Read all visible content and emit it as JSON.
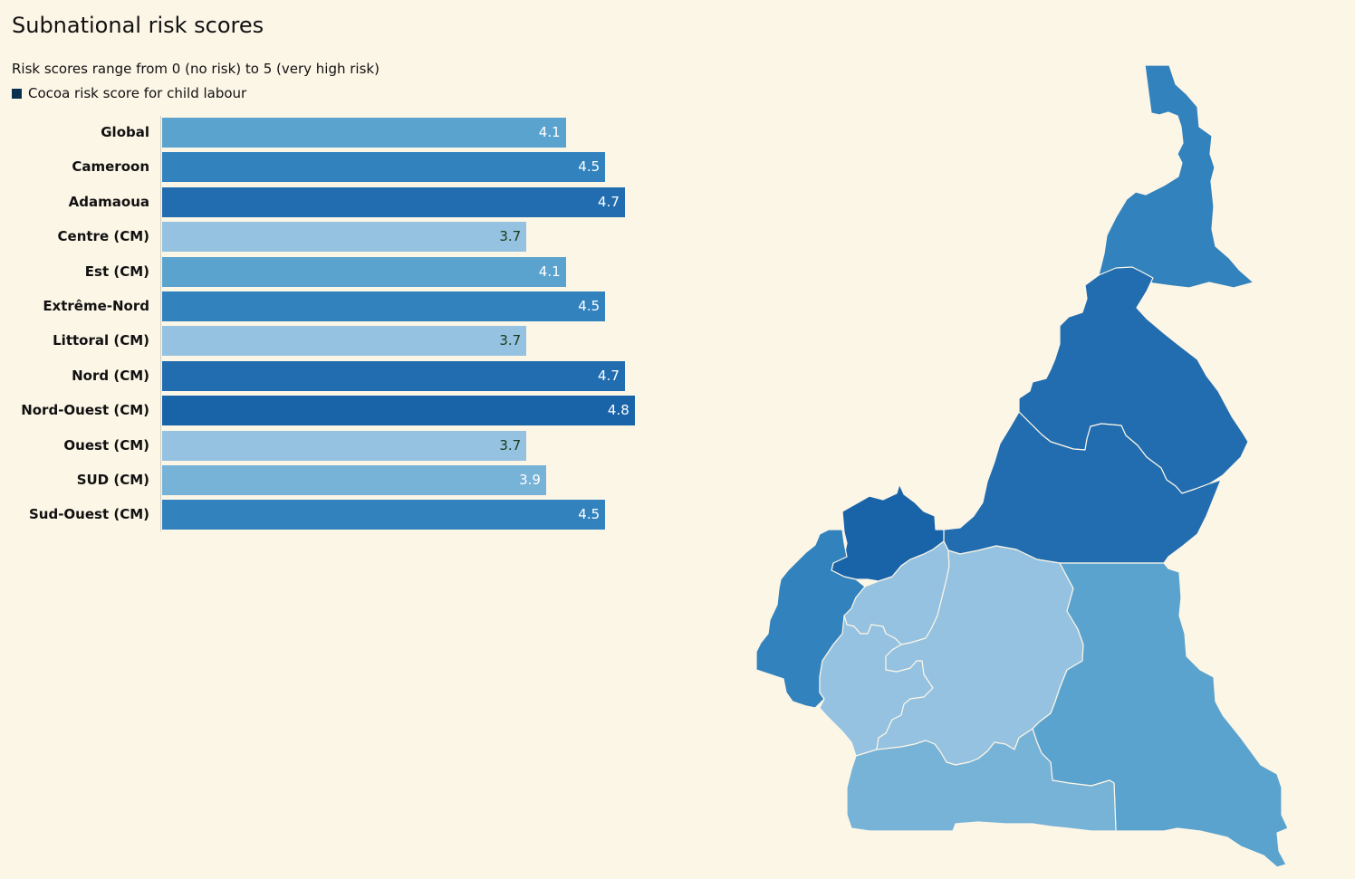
{
  "header": {
    "title": "Subnational risk scores",
    "subtitle": "Risk scores range from 0 (no risk) to 5 (very high risk)",
    "legend_label": "Cocoa risk score for child labour",
    "legend_color": "#08304f"
  },
  "chart_data": [
    {
      "type": "bar",
      "orientation": "horizontal",
      "title": "Subnational risk scores",
      "subtitle": "Risk scores range from 0 (no risk) to 5 (very high risk)",
      "legend": [
        "Cocoa risk score for child labour"
      ],
      "categories": [
        "Global",
        "Cameroon",
        "Adamaoua",
        "Centre (CM)",
        "Est (CM)",
        "Extrême-Nord",
        "Littoral (CM)",
        "Nord (CM)",
        "Nord-Ouest (CM)",
        "Ouest (CM)",
        "SUD (CM)",
        "Sud-Ouest (CM)"
      ],
      "values": [
        4.1,
        4.5,
        4.7,
        3.7,
        4.1,
        4.5,
        3.7,
        4.7,
        4.8,
        3.7,
        3.9,
        4.5
      ],
      "xlim": [
        0,
        5
      ],
      "grid": false,
      "data_labels": true
    },
    {
      "type": "heatmap",
      "subtype": "choropleth",
      "region": "Cameroon",
      "regions": [
        "Extrême-Nord",
        "Nord",
        "Adamaoua",
        "Nord-Ouest",
        "Sud-Ouest",
        "Ouest",
        "Littoral",
        "Centre",
        "Est",
        "Sud"
      ],
      "values": [
        4.5,
        4.7,
        4.7,
        4.8,
        4.5,
        3.7,
        3.7,
        3.7,
        4.1,
        3.9
      ]
    }
  ],
  "bars": [
    {
      "label": "Global",
      "value": 4.1,
      "display": "4.1",
      "color": "#5ba3cf",
      "text_color": "#ffffff"
    },
    {
      "label": "Cameroon",
      "value": 4.5,
      "display": "4.5",
      "color": "#3282be",
      "text_color": "#ffffff"
    },
    {
      "label": "Adamaoua",
      "value": 4.7,
      "display": "4.7",
      "color": "#216db0",
      "text_color": "#ffffff"
    },
    {
      "label": "Centre (CM)",
      "value": 3.7,
      "display": "3.7",
      "color": "#94c2e0",
      "text_color": "#1a3a1a"
    },
    {
      "label": "Est (CM)",
      "value": 4.1,
      "display": "4.1",
      "color": "#5ba3cf",
      "text_color": "#ffffff"
    },
    {
      "label": "Extrême-Nord",
      "value": 4.5,
      "display": "4.5",
      "color": "#3282be",
      "text_color": "#ffffff"
    },
    {
      "label": "Littoral (CM)",
      "value": 3.7,
      "display": "3.7",
      "color": "#94c2e0",
      "text_color": "#1a3a1a"
    },
    {
      "label": "Nord (CM)",
      "value": 4.7,
      "display": "4.7",
      "color": "#216db0",
      "text_color": "#ffffff"
    },
    {
      "label": "Nord-Ouest (CM)",
      "value": 4.8,
      "display": "4.8",
      "color": "#1963a9",
      "text_color": "#ffffff"
    },
    {
      "label": "Ouest (CM)",
      "value": 3.7,
      "display": "3.7",
      "color": "#94c2e0",
      "text_color": "#1a3a1a"
    },
    {
      "label": "SUD (CM)",
      "value": 3.9,
      "display": "3.9",
      "color": "#77b2d7",
      "text_color": "#ffffff"
    },
    {
      "label": "Sud-Ouest (CM)",
      "value": 4.5,
      "display": "4.5",
      "color": "#3282be",
      "text_color": "#ffffff"
    }
  ],
  "map": {
    "regions": [
      {
        "name": "Extrême-Nord",
        "color": "#3282be"
      },
      {
        "name": "Nord",
        "color": "#216db0"
      },
      {
        "name": "Adamaoua",
        "color": "#216db0"
      },
      {
        "name": "Nord-Ouest",
        "color": "#1963a9"
      },
      {
        "name": "Sud-Ouest",
        "color": "#3282be"
      },
      {
        "name": "Ouest",
        "color": "#94c2e0"
      },
      {
        "name": "Littoral",
        "color": "#94c2e0"
      },
      {
        "name": "Centre",
        "color": "#94c2e0"
      },
      {
        "name": "Est",
        "color": "#5ba3cf"
      },
      {
        "name": "Sud",
        "color": "#77b2d7"
      }
    ]
  }
}
